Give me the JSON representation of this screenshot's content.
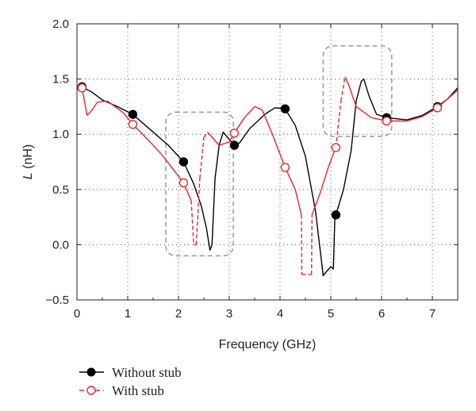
{
  "chart_data": {
    "type": "line",
    "xlabel": "Frequency (GHz)",
    "ylabel": "L (nH)",
    "ylabel_italic_part": "L",
    "ylabel_unit_part": " (nH)",
    "xlim": [
      0,
      7.5
    ],
    "ylim": [
      -0.5,
      2.0
    ],
    "xticks": [
      0,
      1,
      2,
      3,
      4,
      5,
      6,
      7
    ],
    "yticks": [
      -0.5,
      0.0,
      0.5,
      1.0,
      1.5,
      2.0
    ],
    "ytick_labels": [
      "−0.5",
      "0.0",
      "0.5",
      "1.0",
      "1.5",
      "2.0"
    ],
    "grid": "dotted",
    "legend_placement": "below",
    "series": [
      {
        "name": "Without stub",
        "color": "#000000",
        "marker": "filled-circle",
        "line": "solid",
        "markers_at": [
          [
            0.1,
            1.43
          ],
          [
            1.1,
            1.18
          ],
          [
            2.1,
            0.75
          ],
          [
            3.1,
            0.9
          ],
          [
            4.1,
            1.23
          ],
          [
            5.1,
            0.27
          ],
          [
            6.1,
            1.15
          ],
          [
            7.1,
            1.25
          ]
        ],
        "points": [
          [
            0.0,
            1.42
          ],
          [
            0.1,
            1.43
          ],
          [
            0.3,
            1.38
          ],
          [
            0.5,
            1.31
          ],
          [
            0.8,
            1.25
          ],
          [
            1.1,
            1.18
          ],
          [
            1.5,
            1.02
          ],
          [
            1.8,
            0.9
          ],
          [
            2.1,
            0.75
          ],
          [
            2.3,
            0.55
          ],
          [
            2.45,
            0.35
          ],
          [
            2.55,
            0.15
          ],
          [
            2.62,
            -0.05
          ],
          [
            2.66,
            0.0
          ],
          [
            2.72,
            0.6
          ],
          [
            2.8,
            0.9
          ],
          [
            2.88,
            1.02
          ],
          [
            2.95,
            0.98
          ],
          [
            3.1,
            0.9
          ],
          [
            3.2,
            0.92
          ],
          [
            3.4,
            1.05
          ],
          [
            3.7,
            1.18
          ],
          [
            3.9,
            1.24
          ],
          [
            4.1,
            1.23
          ],
          [
            4.3,
            1.08
          ],
          [
            4.5,
            0.8
          ],
          [
            4.7,
            0.3
          ],
          [
            4.85,
            -0.28
          ],
          [
            4.92,
            -0.24
          ],
          [
            5.0,
            -0.2
          ],
          [
            5.05,
            -0.22
          ],
          [
            5.08,
            0.25
          ],
          [
            5.1,
            0.27
          ],
          [
            5.25,
            0.5
          ],
          [
            5.4,
            0.85
          ],
          [
            5.5,
            1.3
          ],
          [
            5.6,
            1.48
          ],
          [
            5.65,
            1.5
          ],
          [
            5.75,
            1.35
          ],
          [
            5.9,
            1.18
          ],
          [
            6.1,
            1.15
          ],
          [
            6.5,
            1.13
          ],
          [
            6.8,
            1.17
          ],
          [
            7.1,
            1.25
          ],
          [
            7.3,
            1.32
          ],
          [
            7.5,
            1.42
          ]
        ]
      },
      {
        "name": "With stub",
        "color": "#e8242b",
        "marker": "open-circle",
        "line": "dashed",
        "markers_at": [
          [
            0.1,
            1.42
          ],
          [
            1.1,
            1.09
          ],
          [
            2.1,
            0.56
          ],
          [
            3.1,
            1.01
          ],
          [
            4.1,
            0.7
          ],
          [
            5.1,
            0.88
          ],
          [
            6.1,
            1.12
          ],
          [
            7.1,
            1.24
          ]
        ],
        "points": [
          [
            0.0,
            1.4
          ],
          [
            0.1,
            1.42
          ],
          [
            0.2,
            1.17
          ],
          [
            0.3,
            1.22
          ],
          [
            0.4,
            1.29
          ],
          [
            0.6,
            1.3
          ],
          [
            0.9,
            1.2
          ],
          [
            1.1,
            1.09
          ],
          [
            1.4,
            0.95
          ],
          [
            1.7,
            0.8
          ],
          [
            2.1,
            0.56
          ],
          [
            2.25,
            0.4
          ],
          [
            2.3,
            0.0
          ],
          [
            2.35,
            0.0
          ],
          [
            2.42,
            0.6
          ],
          [
            2.5,
            0.97
          ],
          [
            2.57,
            1.02
          ],
          [
            2.65,
            0.98
          ],
          [
            2.8,
            0.9
          ],
          [
            3.0,
            0.93
          ],
          [
            3.1,
            1.01
          ],
          [
            3.3,
            1.15
          ],
          [
            3.5,
            1.25
          ],
          [
            3.65,
            1.22
          ],
          [
            3.85,
            1.0
          ],
          [
            4.1,
            0.7
          ],
          [
            4.3,
            0.5
          ],
          [
            4.42,
            0.27
          ],
          [
            4.43,
            -0.27
          ],
          [
            4.62,
            -0.27
          ],
          [
            4.63,
            0.27
          ],
          [
            4.8,
            0.48
          ],
          [
            4.95,
            0.7
          ],
          [
            5.1,
            0.88
          ],
          [
            5.2,
            1.3
          ],
          [
            5.28,
            1.52
          ],
          [
            5.35,
            1.45
          ],
          [
            5.5,
            1.25
          ],
          [
            5.8,
            1.15
          ],
          [
            6.1,
            1.12
          ],
          [
            6.5,
            1.12
          ],
          [
            6.8,
            1.16
          ],
          [
            7.1,
            1.24
          ],
          [
            7.5,
            1.4
          ]
        ],
        "dashed_ranges": [
          [
            2.2,
            2.55
          ],
          [
            4.4,
            4.66
          ],
          [
            5.15,
            5.3
          ]
        ]
      }
    ],
    "annotations": [
      {
        "type": "dashed-rounded-box",
        "x": [
          1.75,
          3.08
        ],
        "y": [
          -0.1,
          1.2
        ],
        "color": "#999999"
      },
      {
        "type": "dashed-rounded-box",
        "x": [
          4.85,
          6.2
        ],
        "y": [
          0.98,
          1.8
        ],
        "color": "#999999"
      }
    ]
  }
}
